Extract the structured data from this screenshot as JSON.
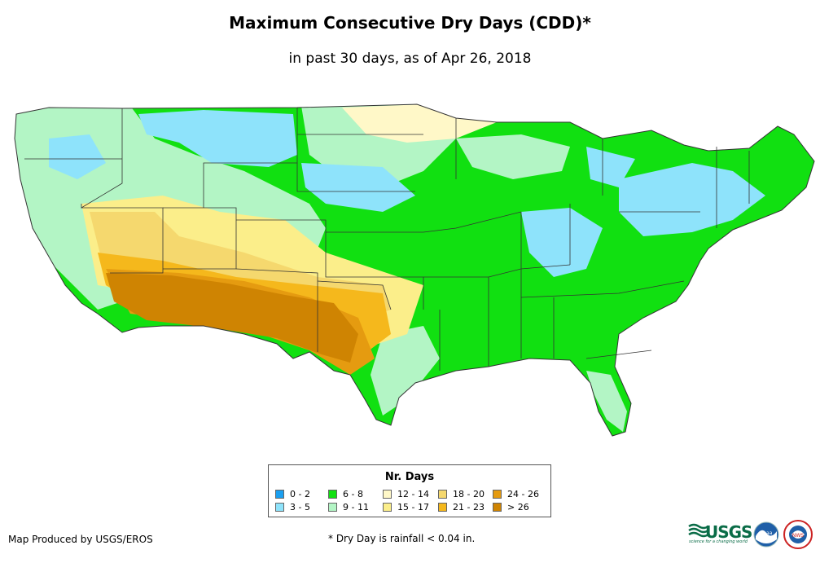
{
  "title": "Maximum Consecutive Dry Days (CDD)*",
  "subtitle": "in past 30 days, as of Apr 26, 2018",
  "legend": {
    "title": "Nr. Days",
    "items": [
      {
        "label": "0 - 2",
        "color": "#1a9ff0"
      },
      {
        "label": "3 - 5",
        "color": "#8ee3fb"
      },
      {
        "label": "6 - 8",
        "color": "#11e011"
      },
      {
        "label": "9 - 11",
        "color": "#b3f5c5"
      },
      {
        "label": "12 - 14",
        "color": "#fff8c8"
      },
      {
        "label": "15 - 17",
        "color": "#fbee8a"
      },
      {
        "label": "18 - 20",
        "color": "#f5d86e"
      },
      {
        "label": "21 - 23",
        "color": "#f5b81c"
      },
      {
        "label": "24 - 26",
        "color": "#e59b10"
      },
      {
        "label": "> 26",
        "color": "#cf8402"
      }
    ]
  },
  "footer": {
    "credit": "Map Produced by USGS/EROS",
    "note": "* Dry Day is rainfall < 0.04 in."
  },
  "logos": {
    "usgs_text": "USGS",
    "usgs_tagline": "science for a changing world",
    "noaa_text": "noaa",
    "nws_text": "NWS"
  }
}
